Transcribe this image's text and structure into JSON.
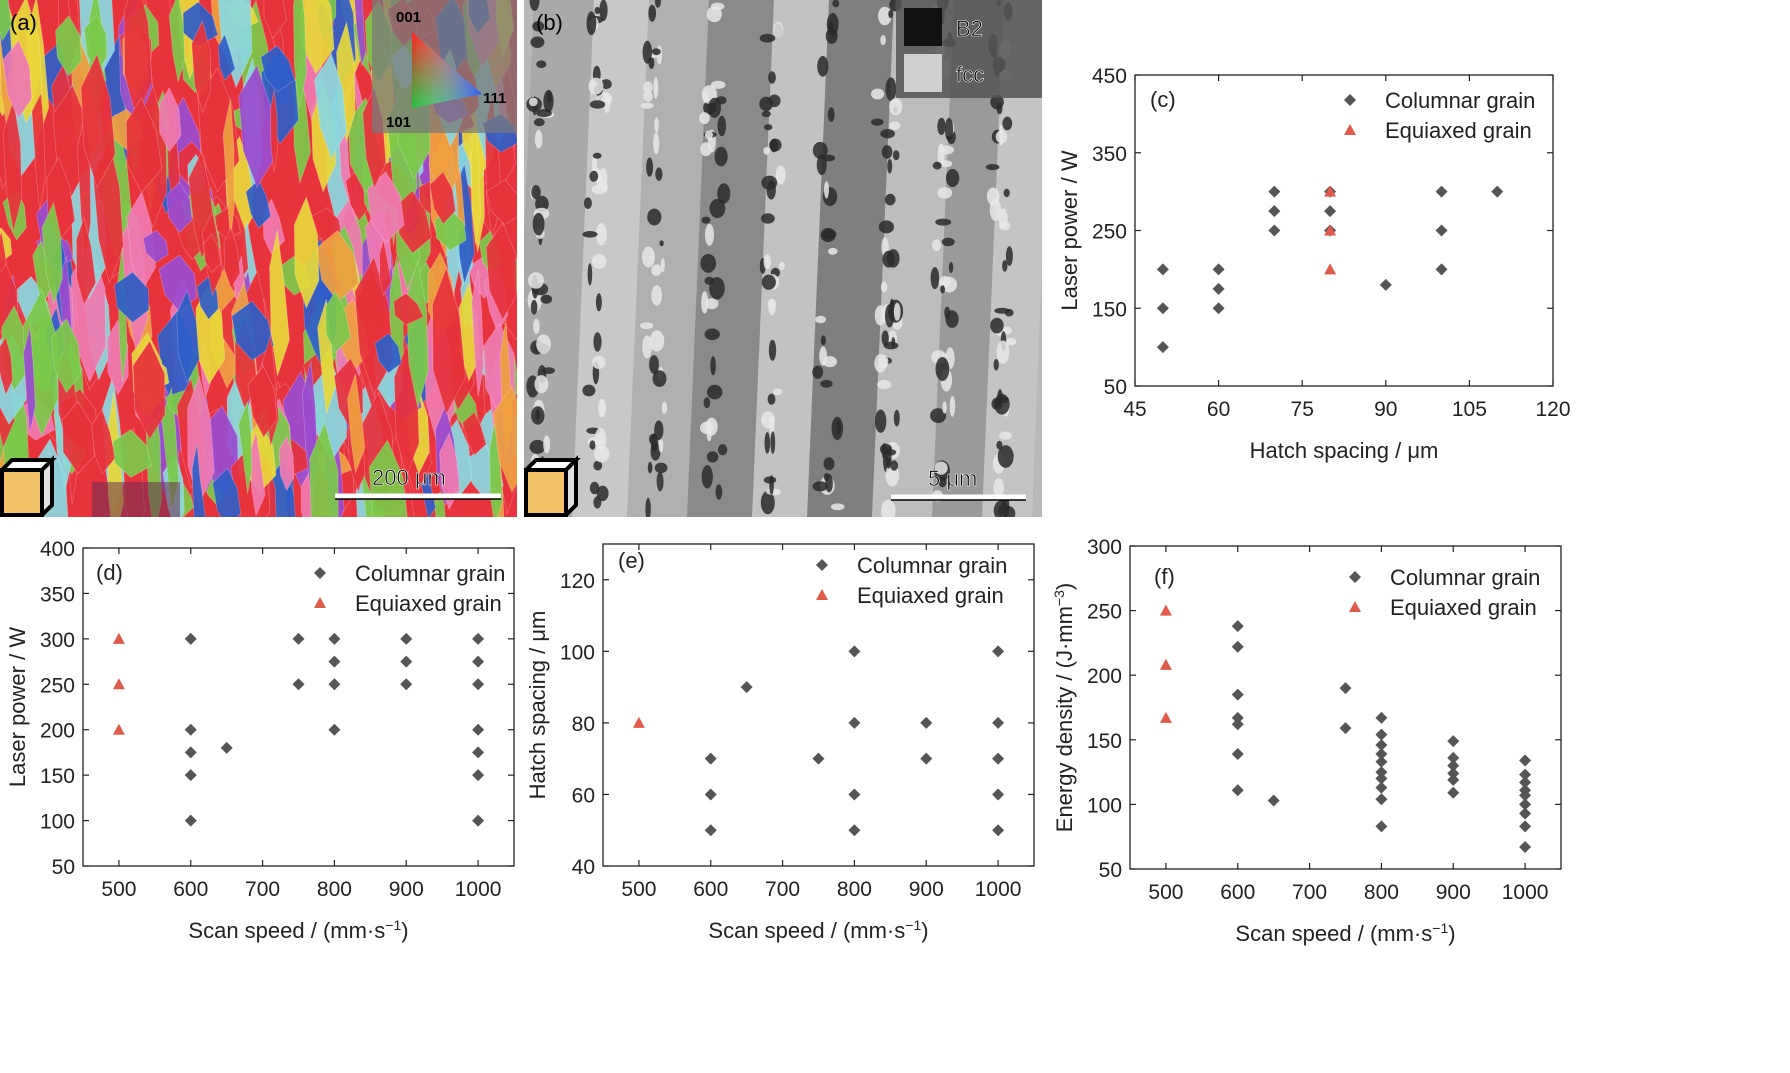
{
  "figure": {
    "panel_a": {
      "label": "(a)",
      "ipf": {
        "corner_001": "001",
        "corner_101": "101",
        "corner_111": "111"
      },
      "scale_bar": "200 μm",
      "colors": {
        "red": "#e8323c",
        "green": "#7cc94a",
        "blue": "#2f5ec8",
        "pink": "#f07ab2",
        "yellow": "#e8d83a",
        "cyan": "#8ad8e0",
        "purple": "#9a4cd0",
        "orange": "#f0a040"
      }
    },
    "panel_b": {
      "label": "(b)",
      "legend": [
        {
          "name": "B2",
          "color": "#111111"
        },
        {
          "name": "fcc",
          "color": "#cfcfcf"
        }
      ],
      "scale_bar": "5 μm"
    },
    "marker_colors": {
      "columnar": "#555555",
      "equiaxed": "#e05a4a"
    }
  },
  "chart_data": [
    {
      "panel": "(c)",
      "type": "scatter",
      "xlabel": "Hatch spacing / μm",
      "ylabel": "Laser power / W",
      "xlim": [
        45,
        120
      ],
      "ylim": [
        50,
        450
      ],
      "xticks": [
        45,
        60,
        75,
        90,
        105,
        120
      ],
      "yticks": [
        50,
        150,
        250,
        350,
        450
      ],
      "legend_position": "top-right",
      "series": [
        {
          "name": "Columnar grain",
          "marker": "diamond",
          "points": [
            [
              50,
              200
            ],
            [
              50,
              150
            ],
            [
              50,
              100
            ],
            [
              60,
              200
            ],
            [
              60,
              175
            ],
            [
              60,
              150
            ],
            [
              70,
              300
            ],
            [
              70,
              275
            ],
            [
              70,
              250
            ],
            [
              80,
              300
            ],
            [
              80,
              275
            ],
            [
              80,
              250
            ],
            [
              90,
              180
            ],
            [
              100,
              300
            ],
            [
              100,
              250
            ],
            [
              100,
              200
            ],
            [
              110,
              300
            ]
          ]
        },
        {
          "name": "Equiaxed grain",
          "marker": "triangle",
          "points": [
            [
              80,
              300
            ],
            [
              80,
              250
            ],
            [
              80,
              200
            ]
          ]
        }
      ]
    },
    {
      "panel": "(d)",
      "type": "scatter",
      "xlabel": "Scan speed / (mm·s",
      "xlabel_sup": "−1",
      "xlabel_end": ")",
      "ylabel": "Laser power / W",
      "xlim": [
        450,
        1050
      ],
      "ylim": [
        50,
        400
      ],
      "xticks": [
        500,
        600,
        700,
        800,
        900,
        1000
      ],
      "yticks": [
        50,
        100,
        150,
        200,
        250,
        300,
        350,
        400
      ],
      "legend_position": "top-right",
      "series": [
        {
          "name": "Columnar grain",
          "marker": "diamond",
          "points": [
            [
              600,
              300
            ],
            [
              600,
              200
            ],
            [
              600,
              175
            ],
            [
              600,
              150
            ],
            [
              600,
              100
            ],
            [
              650,
              180
            ],
            [
              750,
              300
            ],
            [
              750,
              250
            ],
            [
              800,
              300
            ],
            [
              800,
              275
            ],
            [
              800,
              250
            ],
            [
              800,
              200
            ],
            [
              900,
              300
            ],
            [
              900,
              275
            ],
            [
              900,
              250
            ],
            [
              1000,
              300
            ],
            [
              1000,
              275
            ],
            [
              1000,
              250
            ],
            [
              1000,
              200
            ],
            [
              1000,
              175
            ],
            [
              1000,
              150
            ],
            [
              1000,
              100
            ]
          ]
        },
        {
          "name": "Equiaxed grain",
          "marker": "triangle",
          "points": [
            [
              500,
              300
            ],
            [
              500,
              250
            ],
            [
              500,
              200
            ]
          ]
        }
      ]
    },
    {
      "panel": "(e)",
      "type": "scatter",
      "xlabel": "Scan speed / (mm·s",
      "xlabel_sup": "−1",
      "xlabel_end": ")",
      "ylabel": "Hatch spacing / μm",
      "xlim": [
        450,
        1050
      ],
      "ylim": [
        40,
        130
      ],
      "xticks": [
        500,
        600,
        700,
        800,
        900,
        1000
      ],
      "yticks": [
        40,
        60,
        80,
        100,
        120
      ],
      "legend_position": "top-right",
      "series": [
        {
          "name": "Columnar grain",
          "marker": "diamond",
          "points": [
            [
              600,
              70
            ],
            [
              600,
              60
            ],
            [
              600,
              50
            ],
            [
              650,
              90
            ],
            [
              750,
              70
            ],
            [
              800,
              100
            ],
            [
              800,
              80
            ],
            [
              800,
              60
            ],
            [
              800,
              50
            ],
            [
              900,
              80
            ],
            [
              900,
              70
            ],
            [
              1000,
              100
            ],
            [
              1000,
              80
            ],
            [
              1000,
              70
            ],
            [
              1000,
              60
            ],
            [
              1000,
              50
            ]
          ]
        },
        {
          "name": "Equiaxed grain",
          "marker": "triangle",
          "points": [
            [
              500,
              80
            ]
          ]
        }
      ]
    },
    {
      "panel": "(f)",
      "type": "scatter",
      "xlabel": "Scan speed / (mm·s",
      "xlabel_sup": "−1",
      "xlabel_end": ")",
      "ylabel": "Energy density / (J·mm",
      "ylabel_sup": "−3",
      "ylabel_end": ")",
      "xlim": [
        450,
        1050
      ],
      "ylim": [
        50,
        300
      ],
      "xticks": [
        500,
        600,
        700,
        800,
        900,
        1000
      ],
      "yticks": [
        50,
        100,
        150,
        200,
        250,
        300
      ],
      "legend_position": "top-right",
      "series": [
        {
          "name": "Columnar grain",
          "marker": "diamond",
          "points": [
            [
              600,
              238
            ],
            [
              600,
              222
            ],
            [
              600,
              185
            ],
            [
              600,
              167
            ],
            [
              600,
              162
            ],
            [
              600,
              139
            ],
            [
              600,
              111
            ],
            [
              650,
              103
            ],
            [
              750,
              190
            ],
            [
              750,
              159
            ],
            [
              800,
              167
            ],
            [
              800,
              154
            ],
            [
              800,
              146
            ],
            [
              800,
              139
            ],
            [
              800,
              133
            ],
            [
              800,
              125
            ],
            [
              800,
              120
            ],
            [
              800,
              113
            ],
            [
              800,
              104
            ],
            [
              800,
              83
            ],
            [
              900,
              149
            ],
            [
              900,
              136
            ],
            [
              900,
              130
            ],
            [
              900,
              124
            ],
            [
              900,
              119
            ],
            [
              900,
              109
            ],
            [
              1000,
              134
            ],
            [
              1000,
              123
            ],
            [
              1000,
              117
            ],
            [
              1000,
              111
            ],
            [
              1000,
              107
            ],
            [
              1000,
              100
            ],
            [
              1000,
              93
            ],
            [
              1000,
              83
            ],
            [
              1000,
              67
            ]
          ]
        },
        {
          "name": "Equiaxed grain",
          "marker": "triangle",
          "points": [
            [
              500,
              250
            ],
            [
              500,
              208
            ],
            [
              500,
              167
            ]
          ]
        }
      ]
    }
  ]
}
